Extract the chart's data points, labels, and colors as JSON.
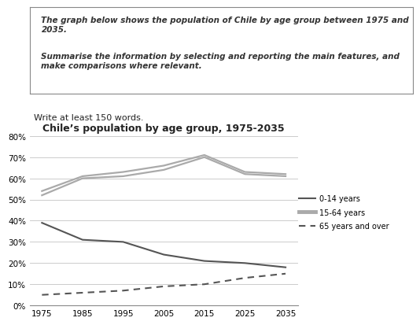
{
  "title": "Chile’s population by age group, 1975-2035",
  "years": [
    1975,
    1985,
    1995,
    2005,
    2015,
    2025,
    2035
  ],
  "series": {
    "0-14 years": [
      39,
      31,
      30,
      24,
      21,
      20,
      18
    ],
    "15-64 years_lower": [
      52,
      60,
      61,
      64,
      70,
      62,
      61
    ],
    "15-64 years_upper": [
      54,
      61,
      63,
      66,
      71,
      63,
      62
    ],
    "65 years and over": [
      5,
      6,
      7,
      9,
      10,
      13,
      15
    ]
  },
  "ylim": [
    0,
    80
  ],
  "yticks": [
    0,
    10,
    20,
    30,
    40,
    50,
    60,
    70,
    80
  ],
  "text_box_line1": "The graph below shows the population of Chile by age group between 1975 and 2035.",
  "text_box_line2": "Summarise the information by selecting and reporting the main features, and make comparisons where relevant.",
  "write_text": "Write at least 150 words.",
  "bg_color": "#ffffff",
  "grid_color": "#cccccc",
  "line_dark": "#555555",
  "line_mid": "#aaaaaa",
  "legend_labels": [
    "0-14 years",
    "15-64 years",
    "65 years and over"
  ]
}
